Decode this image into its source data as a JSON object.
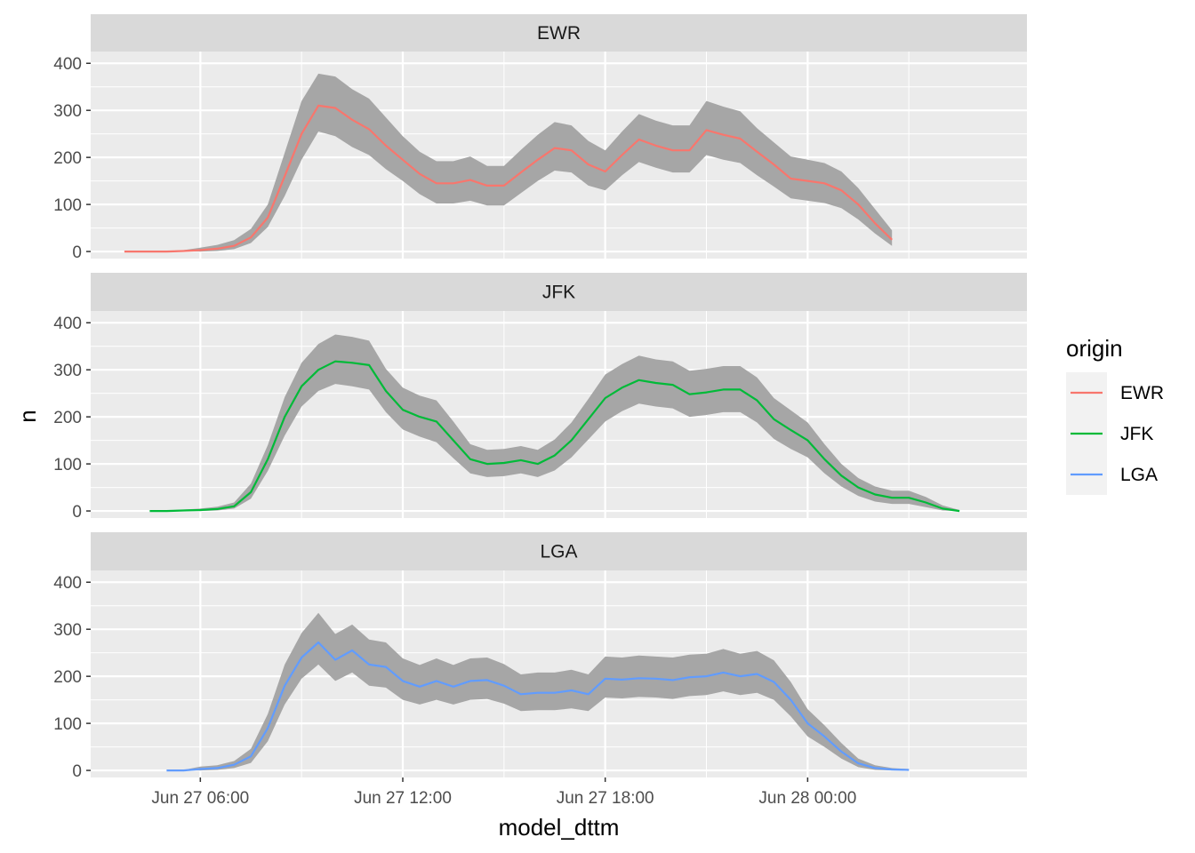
{
  "chart_data": {
    "type": "line",
    "facet_by": "origin",
    "xlabel": "model_dttm",
    "ylabel": "n",
    "x_ticks": [
      "Jun 27 06:00",
      "Jun 27 12:00",
      "Jun 27 18:00",
      "Jun 28 00:00"
    ],
    "x_range": [
      "Jun 27 02:45",
      "Jun 28 06:30"
    ],
    "y_ticks": [
      0,
      100,
      200,
      300,
      400
    ],
    "ylim": [
      -15,
      425
    ],
    "band": "confidence ribbon (grey) around smoothed line",
    "legend": {
      "title": "origin",
      "placement": "right",
      "entries": [
        "EWR",
        "JFK",
        "LGA"
      ]
    },
    "colors": {
      "EWR": "#F8766D",
      "JFK": "#00BA38",
      "LGA": "#619CFF",
      "band": "#a6a6a6",
      "panel": "#ebebeb",
      "strip": "#d9d9d9"
    },
    "panels": [
      {
        "name": "EWR",
        "color": "#F8766D",
        "x": [
          "Jun 27 03:45",
          "Jun 27 04:30",
          "Jun 27 05:00",
          "Jun 27 05:30",
          "Jun 27 06:00",
          "Jun 27 06:30",
          "Jun 27 07:00",
          "Jun 27 07:30",
          "Jun 27 08:00",
          "Jun 27 08:30",
          "Jun 27 09:00",
          "Jun 27 09:30",
          "Jun 27 10:00",
          "Jun 27 10:30",
          "Jun 27 11:00",
          "Jun 27 11:30",
          "Jun 27 12:00",
          "Jun 27 12:30",
          "Jun 27 13:00",
          "Jun 27 13:30",
          "Jun 27 14:00",
          "Jun 27 14:30",
          "Jun 27 15:00",
          "Jun 27 15:30",
          "Jun 27 16:00",
          "Jun 27 16:30",
          "Jun 27 17:00",
          "Jun 27 17:30",
          "Jun 27 18:00",
          "Jun 27 18:30",
          "Jun 27 19:00",
          "Jun 27 19:30",
          "Jun 27 20:00",
          "Jun 27 20:30",
          "Jun 27 21:00",
          "Jun 27 21:30",
          "Jun 27 22:00",
          "Jun 27 22:30",
          "Jun 27 23:00",
          "Jun 27 23:30",
          "Jun 28 00:00",
          "Jun 28 00:30",
          "Jun 28 01:00",
          "Jun 28 01:30",
          "Jun 28 02:00",
          "Jun 28 02:30"
        ],
        "values": [
          0,
          0,
          0,
          1,
          3,
          6,
          12,
          30,
          72,
          160,
          250,
          310,
          305,
          280,
          260,
          225,
          195,
          165,
          145,
          145,
          152,
          140,
          140,
          168,
          195,
          220,
          215,
          185,
          170,
          205,
          238,
          225,
          215,
          215,
          258,
          248,
          240,
          212,
          185,
          155,
          150,
          145,
          130,
          100,
          60,
          25
        ],
        "lower": [
          0,
          0,
          0,
          0,
          0,
          1,
          5,
          18,
          52,
          118,
          195,
          255,
          245,
          222,
          205,
          175,
          150,
          122,
          102,
          102,
          108,
          98,
          98,
          124,
          150,
          172,
          168,
          140,
          130,
          162,
          190,
          178,
          168,
          168,
          205,
          195,
          188,
          162,
          138,
          113,
          108,
          103,
          92,
          68,
          38,
          12
        ],
        "upper": [
          1,
          1,
          1,
          3,
          8,
          14,
          24,
          48,
          100,
          210,
          320,
          378,
          372,
          345,
          325,
          285,
          245,
          212,
          192,
          192,
          202,
          182,
          182,
          216,
          248,
          275,
          268,
          235,
          215,
          255,
          292,
          278,
          268,
          268,
          320,
          308,
          298,
          262,
          232,
          202,
          195,
          188,
          170,
          135,
          90,
          45
        ]
      },
      {
        "name": "JFK",
        "color": "#00BA38",
        "x": [
          "Jun 27 04:30",
          "Jun 27 05:00",
          "Jun 27 05:30",
          "Jun 27 06:00",
          "Jun 27 06:30",
          "Jun 27 07:00",
          "Jun 27 07:30",
          "Jun 27 08:00",
          "Jun 27 08:30",
          "Jun 27 09:00",
          "Jun 27 09:30",
          "Jun 27 10:00",
          "Jun 27 10:30",
          "Jun 27 11:00",
          "Jun 27 11:30",
          "Jun 27 12:00",
          "Jun 27 12:30",
          "Jun 27 13:00",
          "Jun 27 13:30",
          "Jun 27 14:00",
          "Jun 27 14:30",
          "Jun 27 15:00",
          "Jun 27 15:30",
          "Jun 27 16:00",
          "Jun 27 16:30",
          "Jun 27 17:00",
          "Jun 27 17:30",
          "Jun 27 18:00",
          "Jun 27 18:30",
          "Jun 27 19:00",
          "Jun 27 19:30",
          "Jun 27 20:00",
          "Jun 27 20:30",
          "Jun 27 21:00",
          "Jun 27 21:30",
          "Jun 27 22:00",
          "Jun 27 22:30",
          "Jun 27 23:00",
          "Jun 27 23:30",
          "Jun 28 00:00",
          "Jun 28 00:30",
          "Jun 28 01:00",
          "Jun 28 01:30",
          "Jun 28 02:00",
          "Jun 28 02:30",
          "Jun 28 03:00",
          "Jun 28 03:30",
          "Jun 28 04:00",
          "Jun 28 04:30"
        ],
        "values": [
          0,
          0,
          1,
          2,
          4,
          10,
          40,
          110,
          200,
          265,
          300,
          318,
          315,
          310,
          255,
          215,
          200,
          190,
          150,
          110,
          100,
          102,
          108,
          100,
          118,
          150,
          195,
          240,
          262,
          278,
          272,
          268,
          248,
          252,
          258,
          258,
          235,
          195,
          172,
          150,
          110,
          75,
          50,
          35,
          28,
          28,
          18,
          5,
          0
        ],
        "lower": [
          0,
          0,
          0,
          0,
          1,
          5,
          26,
          85,
          160,
          222,
          255,
          270,
          265,
          258,
          210,
          173,
          158,
          146,
          112,
          80,
          72,
          74,
          80,
          72,
          86,
          114,
          152,
          190,
          212,
          228,
          222,
          218,
          200,
          204,
          210,
          210,
          188,
          153,
          132,
          114,
          80,
          52,
          32,
          20,
          15,
          15,
          8,
          1,
          0
        ],
        "upper": [
          1,
          1,
          3,
          5,
          9,
          18,
          58,
          140,
          242,
          315,
          355,
          375,
          370,
          362,
          302,
          262,
          245,
          235,
          190,
          142,
          130,
          132,
          138,
          130,
          152,
          188,
          238,
          290,
          312,
          330,
          322,
          318,
          298,
          302,
          308,
          308,
          284,
          240,
          214,
          188,
          142,
          100,
          70,
          52,
          43,
          43,
          30,
          12,
          2
        ]
      },
      {
        "name": "LGA",
        "color": "#619CFF",
        "x": [
          "Jun 27 05:00",
          "Jun 27 05:30",
          "Jun 27 06:00",
          "Jun 27 06:30",
          "Jun 27 07:00",
          "Jun 27 07:30",
          "Jun 27 08:00",
          "Jun 27 08:30",
          "Jun 27 09:00",
          "Jun 27 09:30",
          "Jun 27 10:00",
          "Jun 27 10:30",
          "Jun 27 11:00",
          "Jun 27 11:30",
          "Jun 27 12:00",
          "Jun 27 12:30",
          "Jun 27 13:00",
          "Jun 27 13:30",
          "Jun 27 14:00",
          "Jun 27 14:30",
          "Jun 27 15:00",
          "Jun 27 15:30",
          "Jun 27 16:00",
          "Jun 27 16:30",
          "Jun 27 17:00",
          "Jun 27 17:30",
          "Jun 27 18:00",
          "Jun 27 18:30",
          "Jun 27 19:00",
          "Jun 27 19:30",
          "Jun 27 20:00",
          "Jun 27 20:30",
          "Jun 27 21:00",
          "Jun 27 21:30",
          "Jun 27 22:00",
          "Jun 27 22:30",
          "Jun 27 23:00",
          "Jun 27 23:30",
          "Jun 28 00:00",
          "Jun 28 00:30",
          "Jun 28 01:00",
          "Jun 28 01:30",
          "Jun 28 02:00",
          "Jun 28 02:30",
          "Jun 28 03:00"
        ],
        "values": [
          0,
          0,
          3,
          5,
          12,
          30,
          90,
          180,
          240,
          272,
          235,
          255,
          225,
          220,
          190,
          178,
          190,
          178,
          190,
          192,
          180,
          162,
          165,
          165,
          170,
          162,
          195,
          193,
          196,
          195,
          192,
          198,
          200,
          208,
          200,
          205,
          188,
          150,
          100,
          72,
          40,
          15,
          5,
          2,
          1
        ],
        "lower": [
          0,
          0,
          0,
          1,
          5,
          16,
          62,
          140,
          195,
          225,
          190,
          208,
          180,
          176,
          150,
          140,
          150,
          140,
          150,
          152,
          142,
          126,
          128,
          128,
          132,
          126,
          155,
          153,
          156,
          155,
          152,
          158,
          160,
          168,
          160,
          165,
          150,
          115,
          72,
          50,
          25,
          7,
          1,
          0,
          0
        ],
        "upper": [
          1,
          1,
          8,
          11,
          20,
          46,
          120,
          225,
          292,
          335,
          290,
          310,
          278,
          272,
          238,
          224,
          238,
          224,
          238,
          240,
          226,
          204,
          208,
          208,
          214,
          204,
          242,
          240,
          244,
          242,
          240,
          246,
          248,
          258,
          248,
          254,
          234,
          188,
          130,
          96,
          58,
          25,
          11,
          5,
          3
        ]
      }
    ]
  }
}
